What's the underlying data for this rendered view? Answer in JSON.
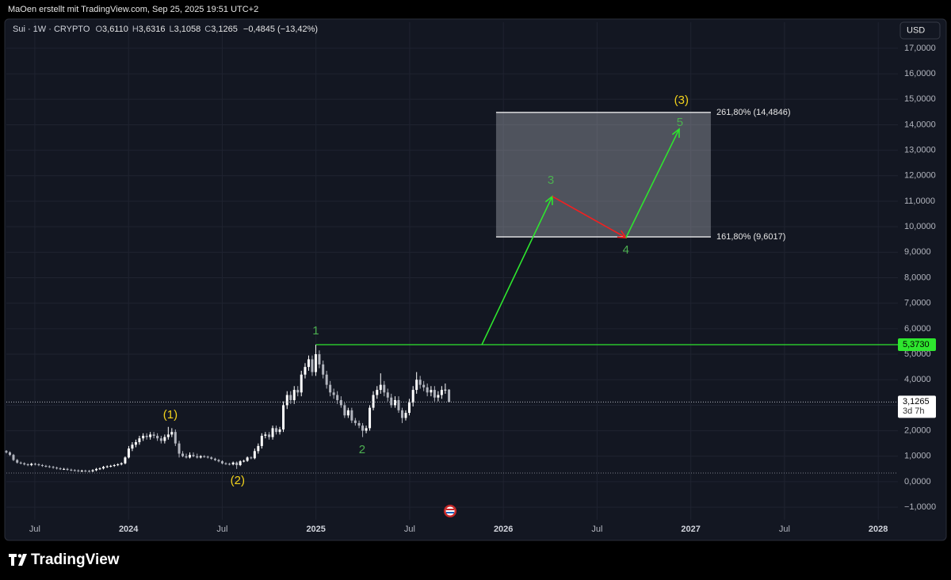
{
  "chart_data": {
    "type": "candlestick",
    "header": "MaOen erstellt mit TradingView.com, Sep 25, 2025 19:51 UTC+2",
    "symbol": "Sui · 1W · CRYPTO",
    "ohlc_legend": [
      {
        "key": "O",
        "value": "3,6110"
      },
      {
        "key": "H",
        "value": "3,6316"
      },
      {
        "key": "L",
        "value": "3,1058"
      },
      {
        "key": "C",
        "value": "3,1265"
      }
    ],
    "change": "−0,4845 (−13,42%)",
    "currency": "USD",
    "brand": "TradingView",
    "up_color": "#ffffff",
    "down_color": "#b2b5be",
    "grid": true,
    "xlim": [
      2023.348,
      2028.105
    ],
    "ylim": [
      -2.24,
      17.65
    ],
    "xticks": [
      {
        "value": 2023.5,
        "label": "Jul"
      },
      2024,
      {
        "value": 2024.5,
        "label": "Jul"
      },
      2025,
      {
        "value": 2025.5,
        "label": "Jul"
      },
      2026,
      {
        "value": 2026.5,
        "label": "Jul"
      },
      2027,
      {
        "value": 2027.5,
        "label": "Jul"
      },
      2028
    ],
    "yticks": [
      {
        "value": -1,
        "label": "−1,0000"
      },
      {
        "value": 0,
        "label": "0,0000"
      },
      {
        "value": 1,
        "label": "1,0000"
      },
      {
        "value": 2,
        "label": "2,0000"
      },
      {
        "value": 3,
        "label": "3,0000"
      },
      {
        "value": 4,
        "label": "4,0000"
      },
      {
        "value": 5,
        "label": "5,0000"
      },
      {
        "value": 6,
        "label": "6,0000"
      },
      {
        "value": 7,
        "label": "7,0000"
      },
      {
        "value": 8,
        "label": "8,0000"
      },
      {
        "value": 9,
        "label": "9,0000"
      },
      {
        "value": 10,
        "label": "10,0000"
      },
      {
        "value": 11,
        "label": "11,0000"
      },
      {
        "value": 12,
        "label": "12,0000"
      },
      {
        "value": 13,
        "label": "13,0000"
      },
      {
        "value": 14,
        "label": "14,0000"
      },
      {
        "value": 15,
        "label": "15,0000"
      },
      {
        "value": 16,
        "label": "16,0000"
      },
      {
        "value": 17,
        "label": "17,0000"
      }
    ],
    "candles": {
      "x": [
        2023.348,
        2023.367,
        2023.386,
        2023.406,
        2023.425,
        2023.444,
        2023.463,
        2023.482,
        2023.502,
        2023.521,
        2023.54,
        2023.559,
        2023.578,
        2023.598,
        2023.617,
        2023.636,
        2023.655,
        2023.674,
        2023.694,
        2023.713,
        2023.732,
        2023.751,
        2023.77,
        2023.79,
        2023.809,
        2023.828,
        2023.847,
        2023.866,
        2023.886,
        2023.905,
        2023.924,
        2023.943,
        2023.962,
        2023.982,
        2024.001,
        2024.02,
        2024.039,
        2024.058,
        2024.078,
        2024.097,
        2024.116,
        2024.135,
        2024.154,
        2024.174,
        2024.193,
        2024.212,
        2024.231,
        2024.25,
        2024.27,
        2024.289,
        2024.308,
        2024.327,
        2024.346,
        2024.366,
        2024.385,
        2024.404,
        2024.423,
        2024.442,
        2024.462,
        2024.481,
        2024.5,
        2024.519,
        2024.538,
        2024.558,
        2024.577,
        2024.596,
        2024.615,
        2024.634,
        2024.654,
        2024.673,
        2024.692,
        2024.711,
        2024.73,
        2024.75,
        2024.769,
        2024.788,
        2024.807,
        2024.826,
        2024.846,
        2024.865,
        2024.884,
        2024.903,
        2024.922,
        2024.942,
        2024.961,
        2024.98,
        2024.999,
        2025.018,
        2025.038,
        2025.057,
        2025.076,
        2025.095,
        2025.114,
        2025.134,
        2025.153,
        2025.172,
        2025.191,
        2025.21,
        2025.23,
        2025.249,
        2025.268,
        2025.287,
        2025.306,
        2025.326,
        2025.345,
        2025.364,
        2025.383,
        2025.402,
        2025.422,
        2025.441,
        2025.46,
        2025.479,
        2025.498,
        2025.518,
        2025.537,
        2025.556,
        2025.575,
        2025.594,
        2025.614,
        2025.633,
        2025.652,
        2025.671,
        2025.69,
        2025.71
      ],
      "open": [
        1.2,
        1.15,
        1.05,
        0.85,
        0.75,
        0.72,
        0.68,
        0.65,
        0.7,
        0.68,
        0.65,
        0.62,
        0.6,
        0.58,
        0.55,
        0.52,
        0.5,
        0.5,
        0.47,
        0.45,
        0.44,
        0.42,
        0.43,
        0.42,
        0.41,
        0.45,
        0.5,
        0.52,
        0.58,
        0.6,
        0.62,
        0.65,
        0.68,
        0.72,
        0.95,
        1.3,
        1.45,
        1.55,
        1.7,
        1.8,
        1.75,
        1.85,
        1.8,
        1.7,
        1.6,
        1.75,
        1.85,
        1.95,
        1.5,
        1.1,
        1.0,
        0.95,
        1.05,
        1.0,
        0.95,
        1.0,
        0.98,
        0.95,
        0.9,
        0.85,
        0.8,
        0.72,
        0.7,
        0.68,
        0.75,
        0.65,
        0.8,
        0.82,
        0.95,
        0.92,
        1.2,
        1.4,
        1.8,
        1.85,
        1.75,
        2.1,
        1.95,
        2.05,
        3.0,
        3.4,
        3.2,
        3.6,
        3.5,
        4.2,
        4.5,
        4.8,
        4.3,
        5.0,
        4.6,
        4.2,
        3.8,
        3.5,
        3.4,
        3.2,
        3.0,
        2.6,
        2.8,
        2.4,
        2.3,
        2.2,
        2.0,
        2.1,
        2.9,
        3.4,
        3.6,
        3.8,
        3.5,
        3.3,
        3.0,
        3.2,
        2.8,
        2.5,
        2.7,
        3.1,
        3.6,
        4.0,
        3.8,
        3.7,
        3.5,
        3.6,
        3.3,
        3.4,
        3.6,
        3.611
      ],
      "high": [
        1.24,
        1.19,
        1.09,
        0.89,
        0.79,
        0.76,
        0.72,
        0.74,
        0.74,
        0.72,
        0.69,
        0.66,
        0.64,
        0.62,
        0.59,
        0.56,
        0.54,
        0.54,
        0.51,
        0.49,
        0.48,
        0.47,
        0.47,
        0.46,
        0.49,
        0.54,
        0.56,
        0.62,
        0.64,
        0.66,
        0.69,
        0.72,
        0.76,
        0.99,
        1.4,
        1.55,
        1.65,
        1.8,
        1.9,
        1.9,
        1.95,
        1.95,
        1.9,
        1.8,
        1.85,
        2.15,
        2.1,
        2.05,
        1.6,
        1.2,
        1.1,
        1.15,
        1.15,
        1.1,
        1.04,
        1.04,
        1.02,
        0.99,
        0.94,
        0.89,
        0.84,
        0.76,
        0.74,
        0.79,
        0.79,
        0.84,
        0.86,
        0.99,
        0.99,
        1.3,
        1.5,
        1.9,
        1.95,
        1.95,
        2.2,
        2.2,
        2.15,
        3.15,
        3.55,
        3.55,
        3.75,
        3.75,
        4.35,
        4.65,
        4.95,
        4.95,
        5.37,
        5.15,
        4.75,
        4.35,
        3.95,
        3.65,
        3.55,
        3.35,
        3.1,
        2.9,
        2.9,
        2.5,
        2.4,
        2.3,
        2.2,
        3.0,
        3.55,
        3.75,
        4.25,
        3.95,
        3.65,
        3.45,
        3.35,
        3.35,
        2.9,
        2.8,
        3.25,
        3.75,
        4.3,
        4.15,
        3.95,
        3.85,
        3.75,
        3.75,
        3.55,
        3.75,
        3.85,
        3.6316
      ],
      "low": [
        1.11,
        1.01,
        0.81,
        0.71,
        0.68,
        0.64,
        0.61,
        0.61,
        0.64,
        0.61,
        0.58,
        0.56,
        0.54,
        0.51,
        0.48,
        0.46,
        0.46,
        0.43,
        0.41,
        0.4,
        0.38,
        0.38,
        0.38,
        0.37,
        0.37,
        0.41,
        0.46,
        0.48,
        0.54,
        0.56,
        0.58,
        0.61,
        0.64,
        0.68,
        0.91,
        1.2,
        1.35,
        1.45,
        1.6,
        1.65,
        1.65,
        1.7,
        1.6,
        1.5,
        1.5,
        1.65,
        1.75,
        1.4,
        0.95,
        0.96,
        0.91,
        0.91,
        0.96,
        0.91,
        0.91,
        0.94,
        0.91,
        0.86,
        0.81,
        0.76,
        0.68,
        0.66,
        0.64,
        0.64,
        0.5,
        0.61,
        0.76,
        0.78,
        0.88,
        0.88,
        1.1,
        1.3,
        1.7,
        1.65,
        1.65,
        1.85,
        1.85,
        1.95,
        2.85,
        3.05,
        3.05,
        3.35,
        3.35,
        4.05,
        4.35,
        4.15,
        4.15,
        4.45,
        4.05,
        3.65,
        3.35,
        3.25,
        3.05,
        2.9,
        2.5,
        2.5,
        2.3,
        2.2,
        2.1,
        1.75,
        1.9,
        2.0,
        2.8,
        3.25,
        3.45,
        3.35,
        3.15,
        2.9,
        2.9,
        2.7,
        2.3,
        2.4,
        2.6,
        2.95,
        3.45,
        3.65,
        3.55,
        3.35,
        3.35,
        3.15,
        3.15,
        3.25,
        3.45,
        3.1058
      ],
      "close": [
        1.15,
        1.05,
        0.85,
        0.75,
        0.72,
        0.68,
        0.65,
        0.7,
        0.68,
        0.65,
        0.62,
        0.6,
        0.58,
        0.55,
        0.52,
        0.5,
        0.5,
        0.47,
        0.45,
        0.44,
        0.42,
        0.43,
        0.42,
        0.41,
        0.45,
        0.5,
        0.52,
        0.58,
        0.6,
        0.62,
        0.65,
        0.68,
        0.72,
        0.95,
        1.3,
        1.45,
        1.55,
        1.7,
        1.8,
        1.75,
        1.85,
        1.8,
        1.7,
        1.6,
        1.75,
        1.85,
        1.95,
        1.5,
        1.1,
        1.0,
        0.95,
        1.05,
        1.0,
        0.95,
        1.0,
        0.98,
        0.95,
        0.9,
        0.85,
        0.8,
        0.72,
        0.7,
        0.68,
        0.75,
        0.65,
        0.8,
        0.82,
        0.95,
        0.92,
        1.2,
        1.4,
        1.8,
        1.85,
        1.75,
        2.1,
        1.95,
        2.05,
        3.0,
        3.4,
        3.2,
        3.6,
        3.5,
        4.2,
        4.5,
        4.8,
        4.3,
        5.0,
        4.6,
        4.2,
        3.8,
        3.5,
        3.4,
        3.2,
        3.0,
        2.6,
        2.8,
        2.4,
        2.3,
        2.2,
        2.0,
        2.1,
        2.9,
        3.4,
        3.6,
        3.8,
        3.5,
        3.3,
        3.0,
        3.2,
        2.8,
        2.5,
        2.7,
        3.1,
        3.6,
        4.0,
        3.8,
        3.7,
        3.5,
        3.6,
        3.3,
        3.4,
        3.6,
        3.611,
        3.1265
      ]
    },
    "last_price": {
      "label": "3,1265",
      "countdown": "3d 7h"
    },
    "support_level": 0.34,
    "breakout_level": {
      "value": 5.373,
      "label": "5,3730",
      "x_start": 2024.999,
      "color": "#2ee62e"
    },
    "fib_box": {
      "x": [
        2025.961,
        2027.107
      ],
      "levels": [
        {
          "value": 14.4846,
          "label": "261,80% (14,4846)"
        },
        {
          "value": 9.6017,
          "label": "161,80% (9,6017)"
        }
      ]
    },
    "arrows": [
      {
        "color": "#2ee62e",
        "x": [
          2025.885,
          2026.261
        ],
        "y": [
          5.373,
          11.19
        ]
      },
      {
        "color": "#f22020",
        "x": [
          2026.261,
          2026.654
        ],
        "y": [
          11.19,
          9.57
        ]
      },
      {
        "color": "#2ee62e",
        "x": [
          2026.654,
          2026.938
        ],
        "y": [
          9.57,
          13.83
        ]
      }
    ],
    "wave_labels": [
      {
        "text": "(1)",
        "color": "#f2d21b",
        "x": 2024.223,
        "y": 2.61
      },
      {
        "text": "(2)",
        "color": "#f2d21b",
        "x": 2024.582,
        "y": 0.03
      },
      {
        "text": "1",
        "color": "#4caf50",
        "x": 2024.999,
        "y": 5.9
      },
      {
        "text": "2",
        "color": "#4caf50",
        "x": 2025.246,
        "y": 1.24
      },
      {
        "text": "3",
        "color": "#4caf50",
        "x": 2026.253,
        "y": 11.81
      },
      {
        "text": "4",
        "color": "#4caf50",
        "x": 2026.654,
        "y": 9.07
      },
      {
        "text": "5",
        "color": "#4caf50",
        "x": 2026.942,
        "y": 14.08
      },
      {
        "text": "(3)",
        "color": "#f2d21b",
        "x": 2026.95,
        "y": 14.95
      }
    ]
  }
}
